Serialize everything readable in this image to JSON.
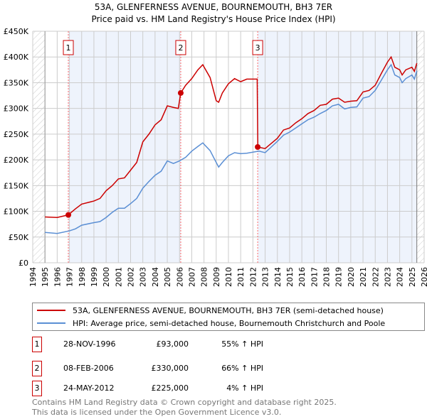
{
  "chart_data": {
    "type": "line",
    "title": "53A, GLENFERNESS AVENUE, BOURNEMOUTH, BH3 7ER",
    "subtitle": "Price paid vs. HM Land Registry's House Price Index (HPI)",
    "xlim": [
      1994,
      2026
    ],
    "ylim": [
      0,
      450000
    ],
    "x_ticks": [
      "1994",
      "1995",
      "1996",
      "1997",
      "1998",
      "1999",
      "2000",
      "2001",
      "2002",
      "2003",
      "2004",
      "2005",
      "2006",
      "2007",
      "2008",
      "2009",
      "2010",
      "2011",
      "2012",
      "2013",
      "2014",
      "2015",
      "2016",
      "2017",
      "2018",
      "2019",
      "2020",
      "2021",
      "2022",
      "2023",
      "2024",
      "2025",
      "2026"
    ],
    "y_ticks": [
      {
        "v": 0,
        "label": "£0"
      },
      {
        "v": 50000,
        "label": "£50K"
      },
      {
        "v": 100000,
        "label": "£100K"
      },
      {
        "v": 150000,
        "label": "£150K"
      },
      {
        "v": 200000,
        "label": "£200K"
      },
      {
        "v": 250000,
        "label": "£250K"
      },
      {
        "v": 300000,
        "label": "£300K"
      },
      {
        "v": 350000,
        "label": "£350K"
      },
      {
        "v": 400000,
        "label": "£400K"
      },
      {
        "v": 450000,
        "label": "£450K"
      }
    ],
    "grid": true,
    "series": [
      {
        "name": "53A, GLENFERNESS AVENUE, BOURNEMOUTH, BH3 7ER (semi-detached house)",
        "color": "#cc0000",
        "x": [
          1995,
          1996,
          1996.9,
          1997.5,
          1998,
          1999,
          1999.5,
          2000,
          2000.5,
          2001,
          2001.5,
          2002,
          2002.5,
          2003,
          2003.5,
          2004,
          2004.5,
          2005,
          2005.5,
          2005.9,
          2006.1,
          2006.5,
          2007,
          2007.5,
          2007.9,
          2008.5,
          2009,
          2009.2,
          2009.5,
          2010,
          2010.5,
          2011,
          2011.5,
          2012,
          2012.35,
          2012.4,
          2013,
          2013.5,
          2014,
          2014.5,
          2015,
          2015.5,
          2016,
          2016.5,
          2017,
          2017.5,
          2018,
          2018.5,
          2019,
          2019.5,
          2020,
          2020.5,
          2021,
          2021.5,
          2022,
          2022.5,
          2023,
          2023.3,
          2023.6,
          2024,
          2024.2,
          2024.5,
          2025,
          2025.2,
          2025.4
        ],
        "y": [
          89000,
          88000,
          93000,
          105000,
          114000,
          120000,
          125000,
          140000,
          150000,
          163000,
          165000,
          180000,
          195000,
          235000,
          250000,
          268000,
          278000,
          305000,
          302000,
          300000,
          330000,
          345000,
          358000,
          375000,
          385000,
          360000,
          315000,
          312000,
          330000,
          348000,
          358000,
          352000,
          357000,
          357000,
          357000,
          225000,
          222000,
          232000,
          242000,
          258000,
          262000,
          272000,
          280000,
          290000,
          296000,
          306000,
          308000,
          318000,
          320000,
          312000,
          314000,
          315000,
          332000,
          335000,
          345000,
          368000,
          390000,
          400000,
          380000,
          375000,
          365000,
          375000,
          380000,
          372000,
          388000
        ]
      },
      {
        "name": "HPI: Average price, semi-detached house, Bournemouth Christchurch and Poole",
        "color": "#5b8fd4",
        "x": [
          1995,
          1996,
          1997,
          1997.5,
          1998,
          1999,
          1999.5,
          2000,
          2000.5,
          2001,
          2001.5,
          2002,
          2002.5,
          2003,
          2003.5,
          2004,
          2004.5,
          2005,
          2005.5,
          2006,
          2006.5,
          2007,
          2007.5,
          2007.9,
          2008.5,
          2009,
          2009.2,
          2009.5,
          2010,
          2010.5,
          2011,
          2011.5,
          2012,
          2012.5,
          2013,
          2013.5,
          2014,
          2014.5,
          2015,
          2015.5,
          2016,
          2016.5,
          2017,
          2017.5,
          2018,
          2018.5,
          2019,
          2019.5,
          2020,
          2020.5,
          2021,
          2021.5,
          2022,
          2022.5,
          2023,
          2023.3,
          2023.6,
          2024,
          2024.2,
          2024.5,
          2025,
          2025.2,
          2025.4
        ],
        "y": [
          59000,
          57000,
          62000,
          66000,
          73000,
          78000,
          80000,
          88000,
          98000,
          106000,
          106000,
          115000,
          125000,
          145000,
          158000,
          170000,
          178000,
          198000,
          193000,
          198000,
          205000,
          217000,
          226000,
          233000,
          218000,
          195000,
          186000,
          195000,
          208000,
          214000,
          212000,
          213000,
          215000,
          217000,
          214000,
          225000,
          236000,
          248000,
          254000,
          262000,
          270000,
          278000,
          283000,
          290000,
          296000,
          305000,
          308000,
          299000,
          302000,
          303000,
          320000,
          323000,
          335000,
          355000,
          375000,
          385000,
          365000,
          360000,
          350000,
          358000,
          365000,
          357000,
          373000
        ]
      }
    ],
    "sales": [
      {
        "n": "1",
        "x": 1996.91,
        "y": 93000,
        "date": "28-NOV-1996",
        "price": "£93,000",
        "hpi": "55% ↑ HPI"
      },
      {
        "n": "2",
        "x": 2006.1,
        "y": 330000,
        "date": "08-FEB-2006",
        "price": "£330,000",
        "hpi": "66% ↑ HPI"
      },
      {
        "n": "3",
        "x": 2012.39,
        "y": 225000,
        "date": "24-MAY-2012",
        "price": "£225,000",
        "hpi": "4% ↑ HPI"
      }
    ],
    "data_end": 2025.4
  },
  "footer": [
    "Contains HM Land Registry data © Crown copyright and database right 2025.",
    "This data is licensed under the Open Government Licence v3.0."
  ]
}
